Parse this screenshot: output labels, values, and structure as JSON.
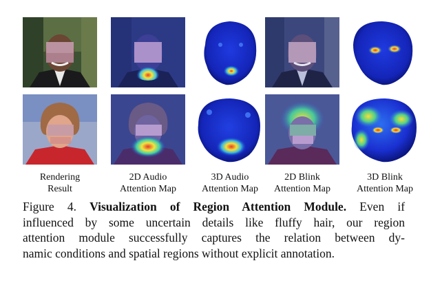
{
  "figure": {
    "labels": [
      {
        "line1": "Rendering",
        "line2": "Result"
      },
      {
        "line1": "2D Audio",
        "line2": "Attention Map"
      },
      {
        "line1": "3D Audio",
        "line2": "Attention Map"
      },
      {
        "line1": "2D Blink",
        "line2": "Attention Map"
      },
      {
        "line1": "3D Blink",
        "line2": "Attention Map"
      }
    ],
    "caption": {
      "prefix": "Figure 4.",
      "bold": "Visualization of Region Attention Module.",
      "line1_rest": "Even if",
      "line2": "influenced by some uncertain details like fluffy hair, our region",
      "line3": "attention module successfully captures the relation between dy-",
      "line4": "namic conditions and spatial regions without explicit annotation."
    },
    "colors": {
      "attention_low": "#1a2fd0",
      "attention_high": "#e0302a",
      "attention_mid": "#f2e23a"
    }
  }
}
